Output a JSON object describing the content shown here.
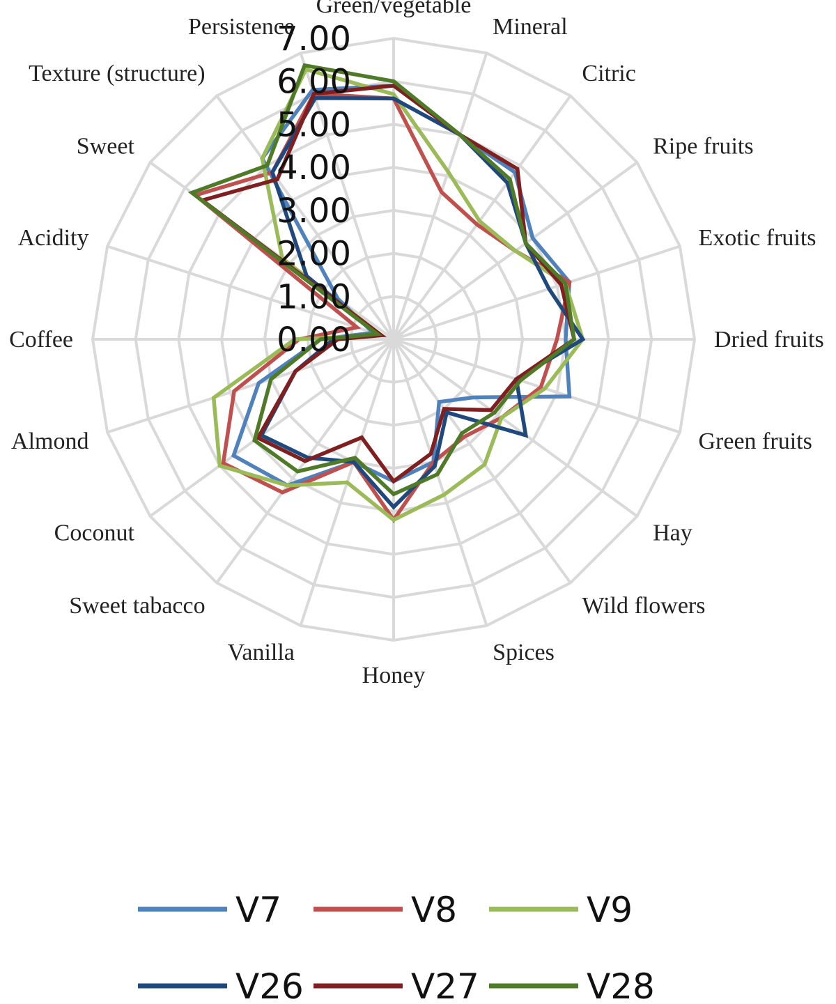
{
  "chart_data": {
    "type": "radar",
    "categories": [
      "Green/vegetable",
      "Mineral",
      "Citric",
      "Ripe fruits",
      "Exotic fruits",
      "Dried fruits",
      "Green fruits",
      "Hay",
      "Wild flowers",
      "Spices",
      "Honey",
      "Vanilla",
      "Sweet tabacco",
      "Coconut",
      "Almond",
      "Coffee",
      "Acidity",
      "Sweet",
      "Texture (structure)",
      "Persistence"
    ],
    "r_ticks": [
      "0.00",
      "1.00",
      "2.00",
      "3.00",
      "4.00",
      "5.00",
      "6.00",
      "7.00"
    ],
    "rlim": [
      0,
      7
    ],
    "grid": true,
    "legend_position": "bottom",
    "series": [
      {
        "name": "V7",
        "color": "#4f81bd",
        "values": [
          5.9,
          5.0,
          4.8,
          4.0,
          4.3,
          4.0,
          4.3,
          2.3,
          1.8,
          3.0,
          3.3,
          3.0,
          4.2,
          4.6,
          3.3,
          1.7,
          0.5,
          1.6,
          5.2,
          6.1
        ]
      },
      {
        "name": "V8",
        "color": "#c0504d",
        "values": [
          5.6,
          3.6,
          3.3,
          3.5,
          4.3,
          3.8,
          3.6,
          3.1,
          2.8,
          3.0,
          4.2,
          3.0,
          4.4,
          4.9,
          3.9,
          2.2,
          0.9,
          5.7,
          4.8,
          6.0
        ]
      },
      {
        "name": "V9",
        "color": "#9bbb59",
        "values": [
          5.7,
          4.1,
          3.4,
          3.5,
          4.2,
          4.4,
          3.7,
          3.1,
          3.6,
          3.8,
          4.2,
          3.5,
          4.2,
          5.0,
          4.4,
          2.3,
          0.3,
          3.2,
          5.2,
          6.6
        ]
      },
      {
        "name": "V26",
        "color": "#1f497d",
        "values": [
          5.6,
          5.0,
          4.5,
          3.8,
          3.8,
          4.4,
          3.0,
          3.8,
          2.1,
          3.1,
          3.9,
          3.0,
          3.4,
          3.8,
          2.4,
          1.4,
          0.4,
          2.5,
          4.8,
          5.9
        ]
      },
      {
        "name": "V27",
        "color": "#7f1f1f",
        "values": [
          5.9,
          5.0,
          4.9,
          3.8,
          4.1,
          4.2,
          3.0,
          2.8,
          2.0,
          2.8,
          3.3,
          2.4,
          3.5,
          3.9,
          2.4,
          1.3,
          0.3,
          5.5,
          4.6,
          6.0
        ]
      },
      {
        "name": "V28",
        "color": "#4f7a28",
        "values": [
          6.0,
          5.0,
          4.6,
          3.8,
          4.2,
          4.2,
          3.1,
          2.9,
          2.7,
          3.3,
          3.6,
          2.9,
          3.8,
          4.0,
          3.0,
          1.7,
          0.4,
          5.8,
          5.0,
          6.7
        ]
      }
    ]
  }
}
